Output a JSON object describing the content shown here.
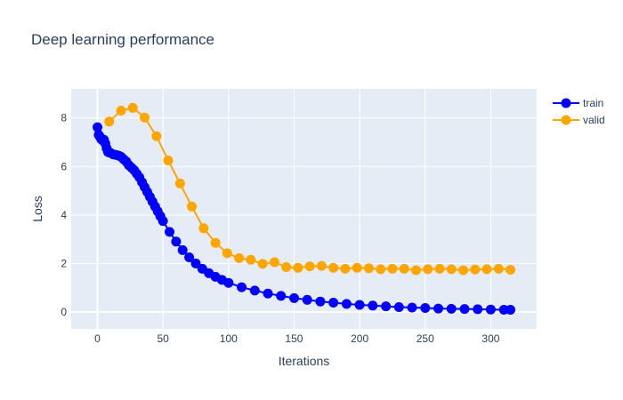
{
  "chart_data": {
    "type": "line",
    "title": "Deep learning performance",
    "xlabel": "Iterations",
    "ylabel": "Loss",
    "xlim": [
      -20,
      335
    ],
    "ylim": [
      -0.7,
      9.2
    ],
    "x_ticks": [
      0,
      50,
      100,
      150,
      200,
      250,
      300
    ],
    "y_ticks": [
      0,
      2,
      4,
      6,
      8
    ],
    "grid": true,
    "legend_position": "top-right",
    "series": [
      {
        "name": "train",
        "color": "#0000ff",
        "mode": "lines+markers",
        "points": [
          [
            0,
            7.62
          ],
          [
            1,
            7.3
          ],
          [
            2,
            7.22
          ],
          [
            3,
            7.12
          ],
          [
            4,
            7.08
          ],
          [
            5,
            7.1
          ],
          [
            6,
            6.95
          ],
          [
            7,
            6.75
          ],
          [
            8,
            6.6
          ],
          [
            9,
            6.58
          ],
          [
            10,
            6.56
          ],
          [
            12,
            6.5
          ],
          [
            14,
            6.48
          ],
          [
            16,
            6.45
          ],
          [
            18,
            6.4
          ],
          [
            20,
            6.3
          ],
          [
            22,
            6.2
          ],
          [
            24,
            6.05
          ],
          [
            26,
            5.95
          ],
          [
            28,
            5.85
          ],
          [
            30,
            5.7
          ],
          [
            32,
            5.55
          ],
          [
            34,
            5.35
          ],
          [
            36,
            5.15
          ],
          [
            38,
            4.95
          ],
          [
            40,
            4.75
          ],
          [
            42,
            4.55
          ],
          [
            44,
            4.35
          ],
          [
            46,
            4.15
          ],
          [
            48,
            3.95
          ],
          [
            50,
            3.75
          ],
          [
            55,
            3.3
          ],
          [
            60,
            2.9
          ],
          [
            65,
            2.55
          ],
          [
            70,
            2.25
          ],
          [
            75,
            2.0
          ],
          [
            80,
            1.78
          ],
          [
            85,
            1.6
          ],
          [
            90,
            1.45
          ],
          [
            95,
            1.32
          ],
          [
            100,
            1.2
          ],
          [
            110,
            1.02
          ],
          [
            120,
            0.88
          ],
          [
            130,
            0.76
          ],
          [
            140,
            0.66
          ],
          [
            150,
            0.57
          ],
          [
            160,
            0.5
          ],
          [
            170,
            0.43
          ],
          [
            180,
            0.38
          ],
          [
            190,
            0.33
          ],
          [
            200,
            0.29
          ],
          [
            210,
            0.26
          ],
          [
            220,
            0.23
          ],
          [
            230,
            0.2
          ],
          [
            240,
            0.18
          ],
          [
            250,
            0.16
          ],
          [
            260,
            0.14
          ],
          [
            270,
            0.13
          ],
          [
            280,
            0.12
          ],
          [
            290,
            0.11
          ],
          [
            300,
            0.1
          ],
          [
            310,
            0.09
          ],
          [
            315,
            0.09
          ]
        ]
      },
      {
        "name": "valid",
        "color": "#ffa500",
        "mode": "lines+markers",
        "points": [
          [
            9,
            7.85
          ],
          [
            18,
            8.3
          ],
          [
            27,
            8.42
          ],
          [
            36,
            8.02
          ],
          [
            45,
            7.25
          ],
          [
            54,
            6.25
          ],
          [
            63,
            5.3
          ],
          [
            72,
            4.35
          ],
          [
            81,
            3.45
          ],
          [
            90,
            2.85
          ],
          [
            99,
            2.42
          ],
          [
            108,
            2.22
          ],
          [
            117,
            2.15
          ],
          [
            126,
            1.98
          ],
          [
            135,
            2.05
          ],
          [
            144,
            1.85
          ],
          [
            153,
            1.82
          ],
          [
            162,
            1.88
          ],
          [
            171,
            1.9
          ],
          [
            180,
            1.82
          ],
          [
            189,
            1.78
          ],
          [
            198,
            1.82
          ],
          [
            207,
            1.8
          ],
          [
            216,
            1.76
          ],
          [
            225,
            1.78
          ],
          [
            234,
            1.78
          ],
          [
            243,
            1.72
          ],
          [
            252,
            1.76
          ],
          [
            261,
            1.78
          ],
          [
            270,
            1.76
          ],
          [
            279,
            1.72
          ],
          [
            288,
            1.75
          ],
          [
            297,
            1.76
          ],
          [
            306,
            1.78
          ],
          [
            315,
            1.74
          ]
        ]
      }
    ]
  }
}
